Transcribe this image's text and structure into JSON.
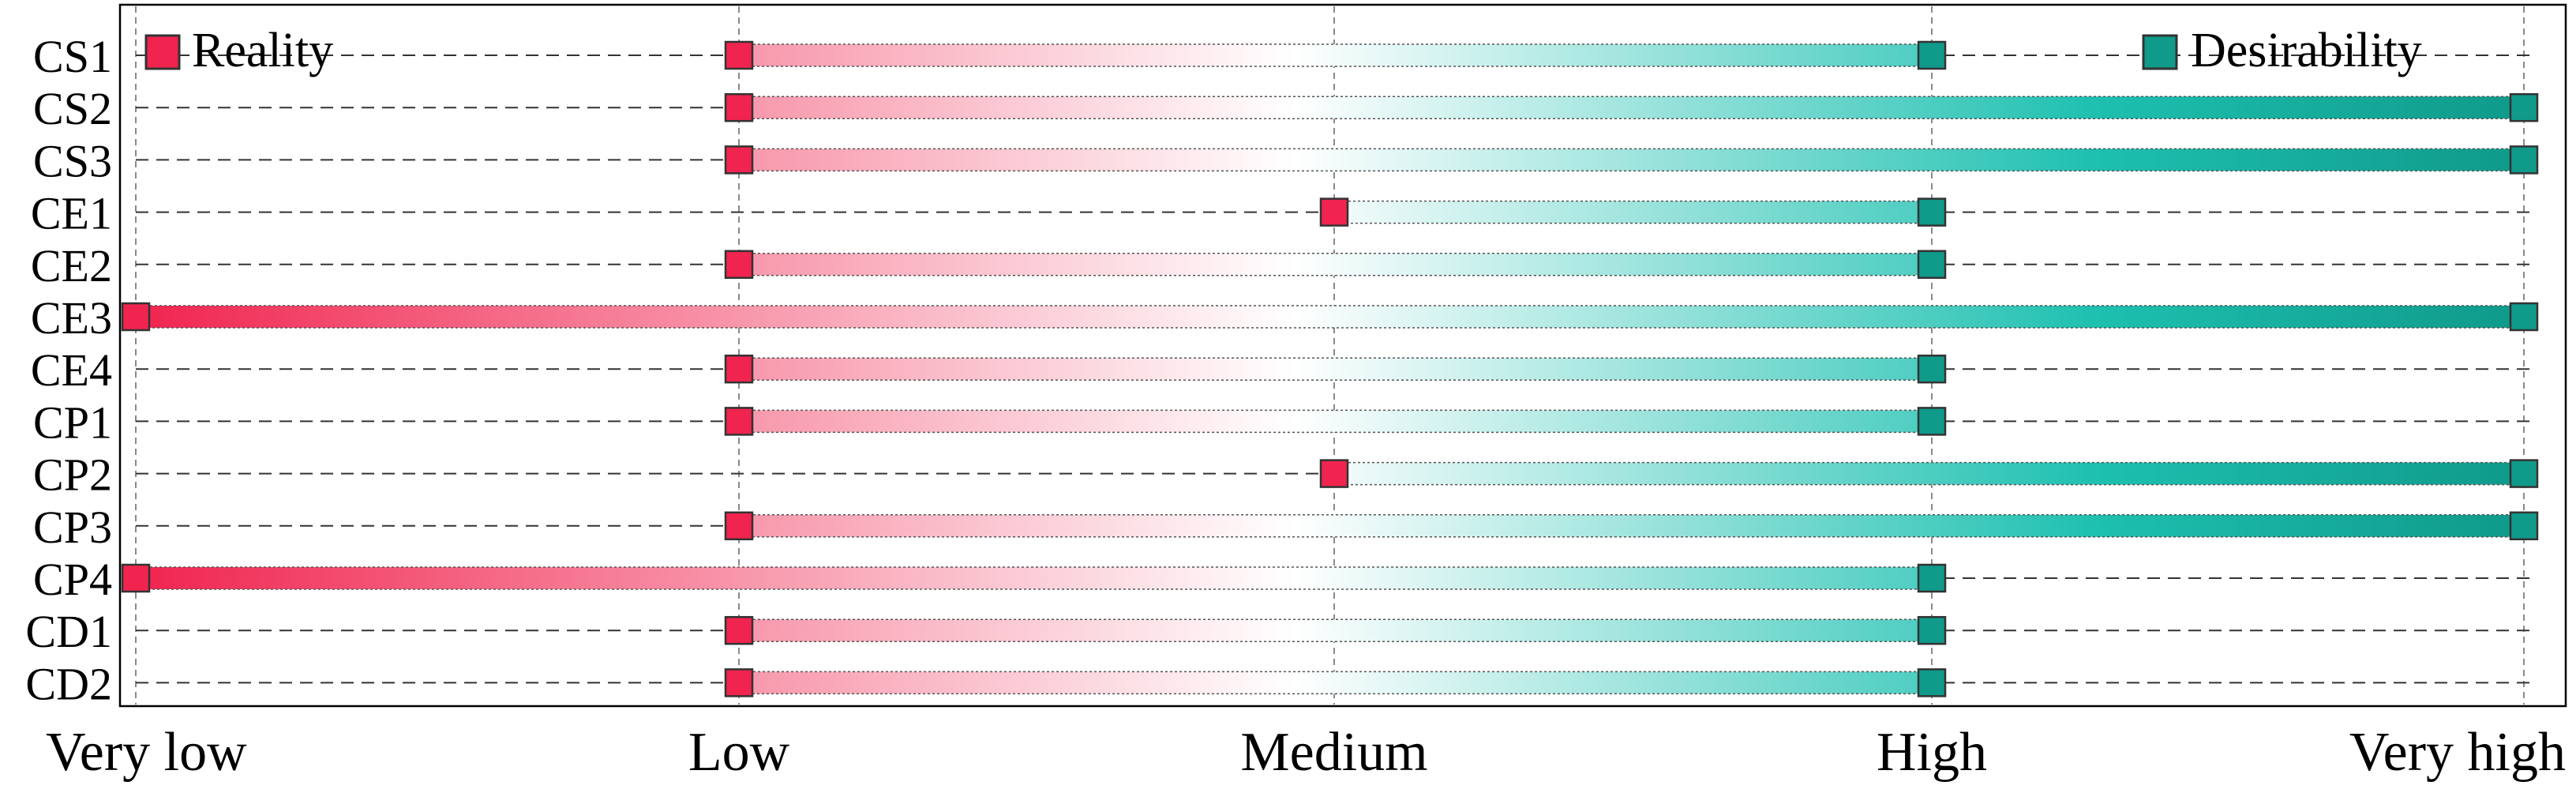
{
  "chart_data": {
    "type": "range-bar",
    "levels": [
      "Very low",
      "Low",
      "Medium",
      "High",
      "Very high"
    ],
    "categories": [
      "CS1",
      "CS2",
      "CS3",
      "CE1",
      "CE2",
      "CE3",
      "CE4",
      "CP1",
      "CP2",
      "CP3",
      "CP4",
      "CD1",
      "CD2"
    ],
    "series": [
      {
        "name": "Reality",
        "color": "#f0244f",
        "values": [
          "Low",
          "Low",
          "Low",
          "Medium",
          "Low",
          "Very low",
          "Low",
          "Low",
          "Medium",
          "Low",
          "Very low",
          "Low",
          "Low"
        ]
      },
      {
        "name": "Desirability",
        "color": "#0f9a8a",
        "values": [
          "High",
          "Very high",
          "Very high",
          "High",
          "High",
          "Very high",
          "High",
          "High",
          "Very high",
          "Very high",
          "High",
          "High",
          "High"
        ]
      }
    ],
    "gradient_colors": [
      "#f0244f",
      "#ffffff",
      "#1ec0b0",
      "#0f9a8a"
    ],
    "grid": true,
    "legend": {
      "position": "top",
      "left": "Reality",
      "right": "Desirability"
    }
  }
}
